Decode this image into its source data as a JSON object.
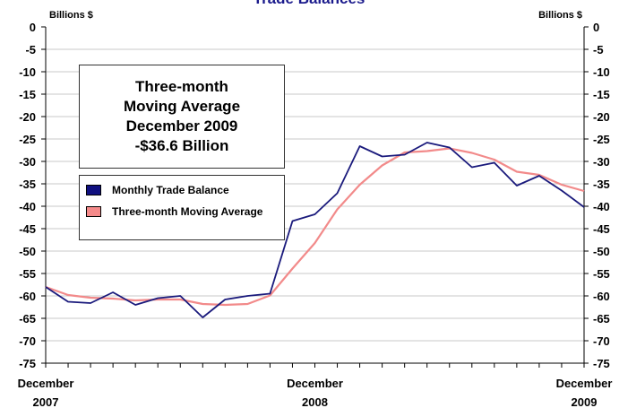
{
  "chart_data": {
    "type": "line",
    "title": "Trade Balances",
    "y_unit_left": "Billions $",
    "y_unit_right": "Billions $",
    "ylim": [
      -75,
      0
    ],
    "yticks": [
      "0",
      "-5",
      "-10",
      "-15",
      "-20",
      "-25",
      "-30",
      "-35",
      "-40",
      "-45",
      "-50",
      "-55",
      "-60",
      "-65",
      "-70",
      "-75"
    ],
    "x_labels": [
      {
        "index": 0,
        "line1": "December",
        "line2": "2007"
      },
      {
        "index": 12,
        "line1": "December",
        "line2": "2008"
      },
      {
        "index": 24,
        "line1": "December",
        "line2": "2009"
      }
    ],
    "series": [
      {
        "name": "Monthly Trade Balance",
        "color": "#1a1a7c",
        "values": [
          -58,
          -61.3,
          -61.6,
          -59.2,
          -62,
          -60.5,
          -60,
          -64.8,
          -60.8,
          -60,
          -59.5,
          -43.3,
          -41.8,
          -37.1,
          -26.6,
          -28.9,
          -28.5,
          -25.8,
          -26.9,
          -31.3,
          -30.3,
          -35.4,
          -33.2,
          -36.5,
          -40.2
        ]
      },
      {
        "name": "Three-month Moving Average",
        "color": "#f28a8a",
        "values": [
          -58,
          -59.8,
          -60.4,
          -60.6,
          -61,
          -60.8,
          -60.8,
          -61.8,
          -62,
          -61.8,
          -59.9,
          -53.9,
          -48.2,
          -40.7,
          -35.2,
          -30.9,
          -28,
          -27.7,
          -27.1,
          -28.1,
          -29.6,
          -32.3,
          -33,
          -35.2,
          -36.6
        ]
      }
    ],
    "annotation": {
      "lines": [
        "Three-month",
        "Moving Average",
        "December 2009",
        "-$36.6 Billion"
      ]
    },
    "legend": {
      "placement": "left"
    },
    "grid": true
  }
}
